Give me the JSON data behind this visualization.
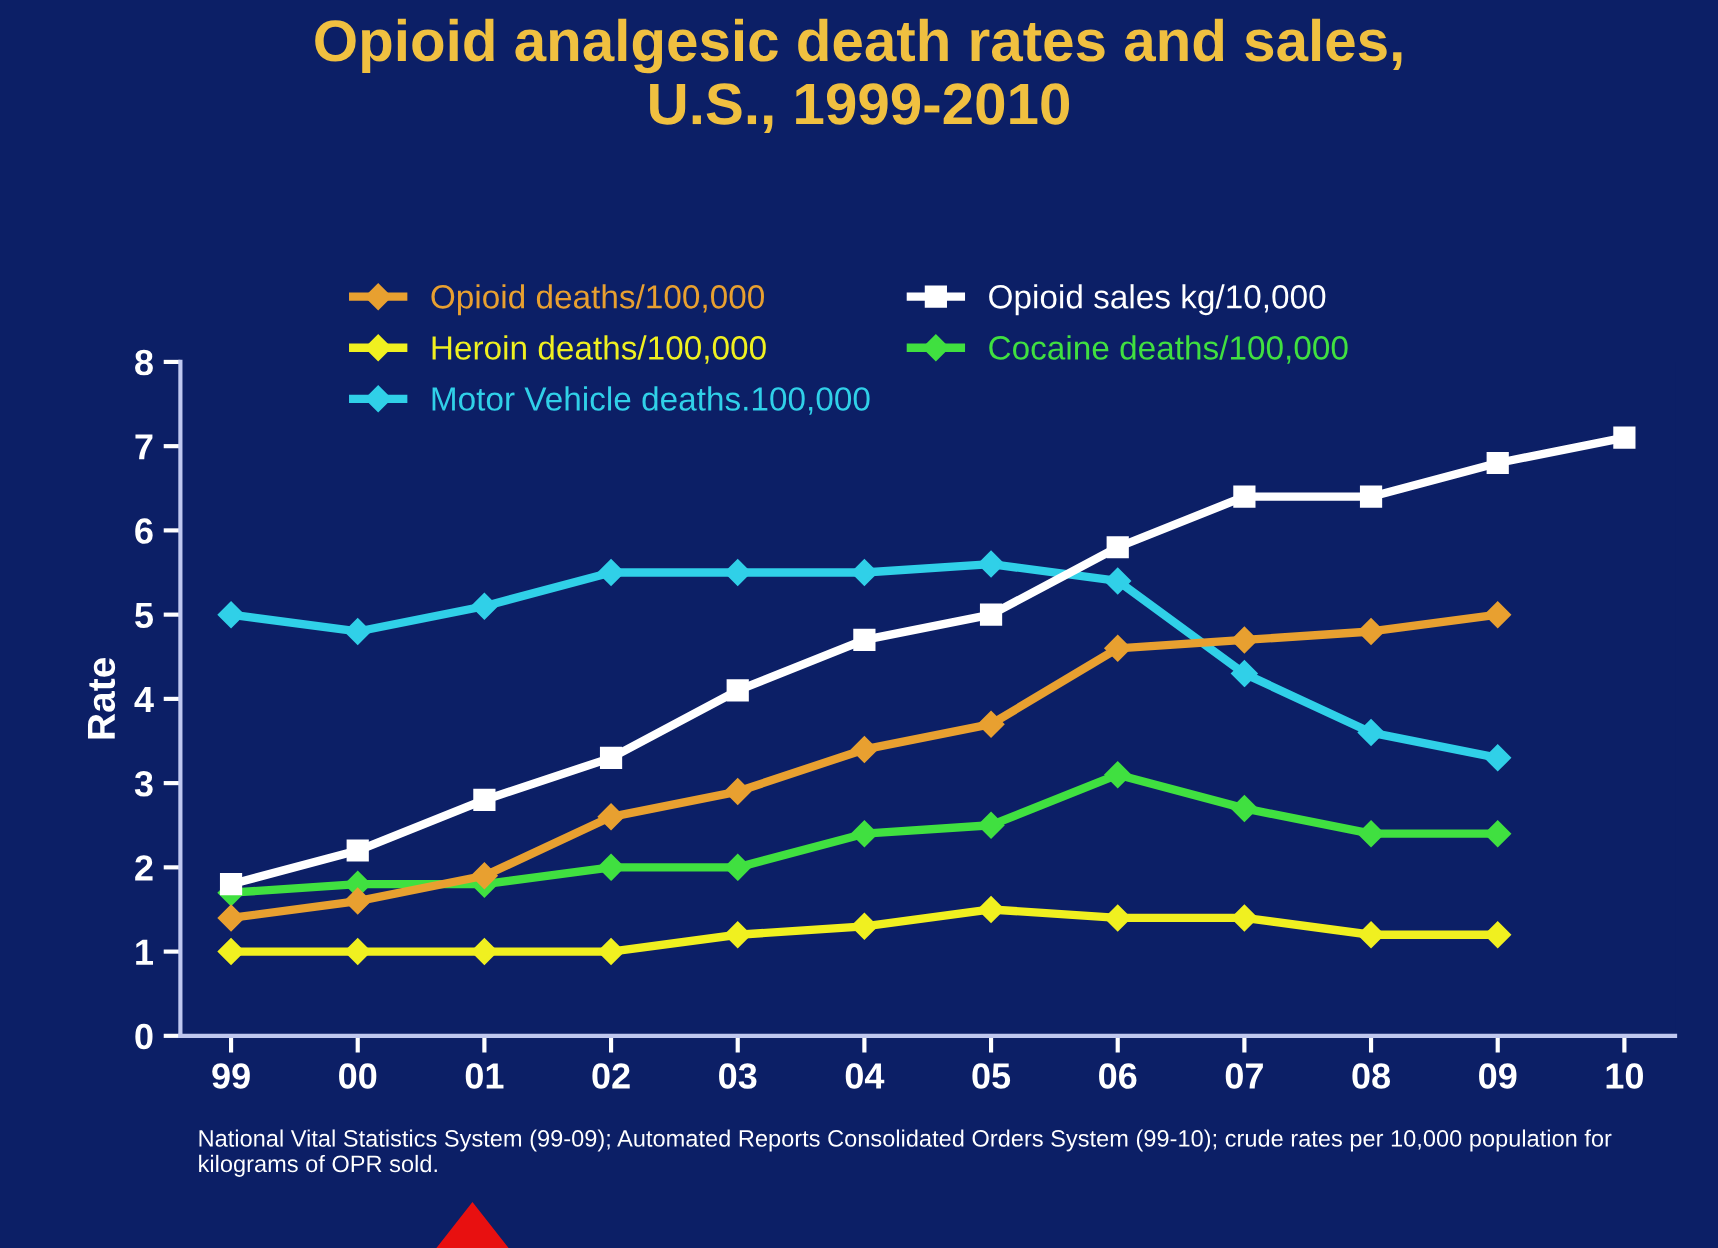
{
  "chart_data": {
    "type": "line",
    "title": "Opioid analgesic death rates and sales,\nU.S., 1999-2010",
    "ylabel": "Rate",
    "categories": [
      "99",
      "00",
      "01",
      "02",
      "03",
      "04",
      "05",
      "06",
      "07",
      "08",
      "09",
      "10"
    ],
    "series": [
      {
        "name": "Opioid deaths/100,000",
        "color": "#e8a030",
        "marker": "diamond",
        "values": [
          1.4,
          1.6,
          1.9,
          2.6,
          2.9,
          3.4,
          3.7,
          4.6,
          4.7,
          4.8,
          5.0,
          null
        ]
      },
      {
        "name": "Opioid sales kg/10,000",
        "color": "#ffffff",
        "marker": "square",
        "values": [
          1.8,
          2.2,
          2.8,
          3.3,
          4.1,
          4.7,
          5.0,
          5.8,
          6.4,
          6.4,
          6.8,
          7.1
        ]
      },
      {
        "name": "Heroin deaths/100,000",
        "color": "#f0f020",
        "marker": "diamond",
        "values": [
          1.0,
          1.0,
          1.0,
          1.0,
          1.2,
          1.3,
          1.5,
          1.4,
          1.4,
          1.2,
          1.2,
          null
        ]
      },
      {
        "name": "Cocaine deaths/100,000",
        "color": "#40e040",
        "marker": "diamond",
        "values": [
          1.7,
          1.8,
          1.8,
          2.0,
          2.0,
          2.4,
          2.5,
          3.1,
          2.7,
          2.4,
          2.4,
          null
        ]
      },
      {
        "name": "Motor Vehicle deaths.100,000",
        "color": "#30d0e8",
        "marker": "diamond",
        "values": [
          5.0,
          4.8,
          5.1,
          5.5,
          5.5,
          5.5,
          5.6,
          5.4,
          4.3,
          3.6,
          3.3,
          null
        ]
      }
    ],
    "ylim": [
      0,
      8
    ],
    "yticks": [
      0,
      1,
      2,
      3,
      4,
      5,
      6,
      7,
      8
    ],
    "grid": false,
    "legend": "top left",
    "line_style": "solid",
    "annotations": [
      "National Vital Statistics System (99-09); Automated Reports Consolidated Orders System (99-10); crude rates per 10,000 population for  kilograms of OPR sold."
    ]
  }
}
